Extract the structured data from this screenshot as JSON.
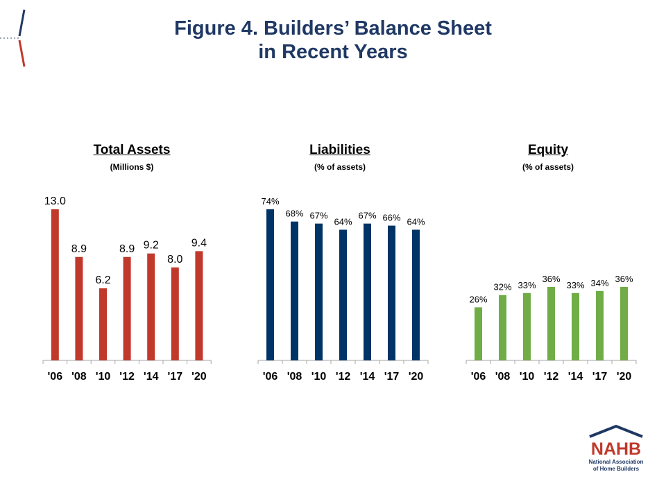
{
  "figure": {
    "title_line1": "Figure 4. Builders’ Balance Sheet",
    "title_line2": "in Recent Years"
  },
  "colors": {
    "assets": "#C0392B",
    "liabilities": "#003366",
    "equity": "#70AD47",
    "title": "#1F3864"
  },
  "logo": {
    "wordmark": "NAHB",
    "line1": "National Association",
    "line2": "of Home Builders"
  },
  "chart_data": [
    {
      "type": "bar",
      "title": "Total Assets",
      "subtitle": "(Millions $)",
      "categories": [
        "'06",
        "'08",
        "'10",
        "'12",
        "'14",
        "'17",
        "'20"
      ],
      "values": [
        13.0,
        8.9,
        6.2,
        8.9,
        9.2,
        8.0,
        9.4
      ],
      "labels": [
        "13.0",
        "8.9",
        "6.2",
        "8.9",
        "9.2",
        "8.0",
        "9.4"
      ],
      "ylim": [
        0,
        13.0
      ],
      "color": "#C0392B"
    },
    {
      "type": "bar",
      "title": "Liabilities",
      "subtitle": "(% of assets)",
      "categories": [
        "'06",
        "'08",
        "'10",
        "'12",
        "'14",
        "'17",
        "'20"
      ],
      "values": [
        74,
        68,
        67,
        64,
        67,
        66,
        64
      ],
      "labels": [
        "74%",
        "68%",
        "67%",
        "64%",
        "67%",
        "66%",
        "64%"
      ],
      "ylim": [
        0,
        74
      ],
      "color": "#003366"
    },
    {
      "type": "bar",
      "title": "Equity",
      "subtitle": "(% of assets)",
      "categories": [
        "'06",
        "'08",
        "'10",
        "'12",
        "'14",
        "'17",
        "'20"
      ],
      "values": [
        26,
        32,
        33,
        36,
        33,
        34,
        36
      ],
      "labels": [
        "26%",
        "32%",
        "33%",
        "36%",
        "33%",
        "34%",
        "36%"
      ],
      "ylim": [
        0,
        74
      ],
      "color": "#70AD47"
    }
  ]
}
